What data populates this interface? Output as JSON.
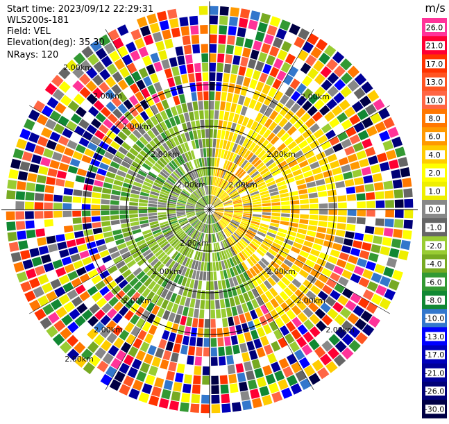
{
  "header": {
    "start_time": "Start time: 2023/09/12 22:29:31",
    "station": "WLS200s-181",
    "field": "Field: VEL",
    "elevation": "Elevation(deg): 35.30",
    "nrays": "NRays: 120"
  },
  "plot": {
    "type": "polar PPI velocity scan",
    "ring_labels": [
      "2.00km",
      "2.00km",
      "2.00km",
      "2.00km",
      "2.00km",
      "2.00km",
      "2.00km",
      "2.00km",
      "2.00km",
      "2.00km",
      "2.00km",
      "2.00km",
      "2.00km",
      "2.00km",
      "2.00km",
      "2.00km"
    ],
    "crosshair": true
  },
  "colorbar": {
    "unit": "m/s",
    "ticks": [
      "26.0",
      "21.0",
      "17.0",
      "13.0",
      "10.0",
      "8.0",
      "6.0",
      "4.0",
      "2.0",
      "1.0",
      "0.0",
      "-1.0",
      "-2.0",
      "-4.0",
      "-6.0",
      "-8.0",
      "-10.0",
      "-13.0",
      "-17.0",
      "-21.0",
      "-26.0",
      "-30.0"
    ],
    "colors": [
      "#ff3399",
      "#ff0033",
      "#ff3300",
      "#ff5522",
      "#ff6644",
      "#ff7700",
      "#ff9900",
      "#ffcc00",
      "#ffff00",
      "#eeee00",
      "#888888",
      "#666666",
      "#99cc33",
      "#77aa22",
      "#339933",
      "#118833",
      "#3377cc",
      "#0000ff",
      "#0000bb",
      "#000099",
      "#000077",
      "#000044"
    ]
  },
  "chart_data": {
    "type": "heatmap",
    "description_free": true,
    "colorbar_unit": "m/s",
    "colorbar_ticks": [
      26.0,
      21.0,
      17.0,
      13.0,
      10.0,
      8.0,
      6.0,
      4.0,
      2.0,
      1.0,
      0.0,
      -1.0,
      -2.0,
      -4.0,
      -6.0,
      -8.0,
      -10.0,
      -13.0,
      -17.0,
      -21.0,
      -26.0,
      -30.0
    ],
    "rays": 120,
    "elevation_deg": 35.3
  }
}
